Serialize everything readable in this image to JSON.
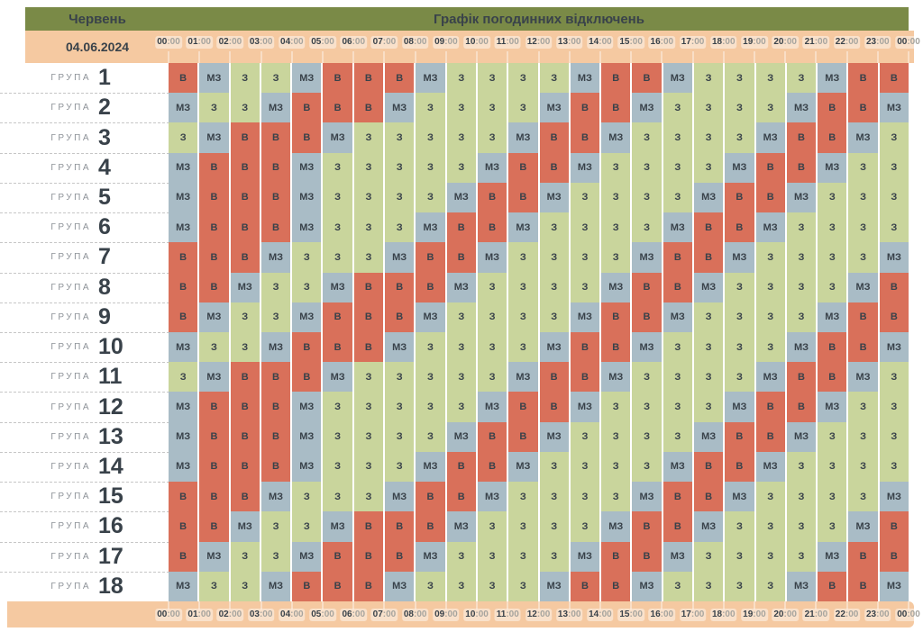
{
  "header": {
    "month": "Червень",
    "title": "Графік погодинних відключень",
    "date": "04.06.2024"
  },
  "group_label": "ГРУПА",
  "colors": {
    "header_bg": "#7a8a47",
    "time_bar_bg": "#f5c9a1",
    "dark_text": "#39424a",
    "muted_text": "#8d9298",
    "time_minutes_text": "#a6a49e"
  },
  "cell_states": {
    "В": {
      "color": "#d9705a"
    },
    "МЗ": {
      "color": "#a9bcc6"
    },
    "З": {
      "color": "#c9d59c"
    }
  },
  "chart_data": {
    "type": "heatmap",
    "title": "Графік погодинних відключень",
    "subtitle": "Червень 04.06.2024",
    "x_labels": [
      "00:00",
      "01:00",
      "02:00",
      "03:00",
      "04:00",
      "05:00",
      "06:00",
      "07:00",
      "08:00",
      "09:00",
      "10:00",
      "11:00",
      "12:00",
      "13:00",
      "14:00",
      "15:00",
      "16:00",
      "17:00",
      "18:00",
      "19:00",
      "20:00",
      "21:00",
      "22:00",
      "23:00",
      "00:00"
    ],
    "y_labels": [
      "1",
      "2",
      "3",
      "4",
      "5",
      "6",
      "7",
      "8",
      "9",
      "10",
      "11",
      "12",
      "13",
      "14",
      "15",
      "16",
      "17",
      "18"
    ],
    "legend": {
      "В": "#d9705a",
      "МЗ": "#a9bcc6",
      "З": "#c9d59c"
    },
    "values": [
      [
        "В",
        "МЗ",
        "З",
        "З",
        "МЗ",
        "В",
        "В",
        "В",
        "МЗ",
        "З",
        "З",
        "З",
        "З",
        "МЗ",
        "В",
        "В",
        "МЗ",
        "З",
        "З",
        "З",
        "З",
        "МЗ",
        "В",
        "В"
      ],
      [
        "МЗ",
        "З",
        "З",
        "МЗ",
        "В",
        "В",
        "В",
        "МЗ",
        "З",
        "З",
        "З",
        "З",
        "МЗ",
        "В",
        "В",
        "МЗ",
        "З",
        "З",
        "З",
        "З",
        "МЗ",
        "В",
        "В",
        "МЗ"
      ],
      [
        "З",
        "МЗ",
        "В",
        "В",
        "В",
        "МЗ",
        "З",
        "З",
        "З",
        "З",
        "З",
        "МЗ",
        "В",
        "В",
        "МЗ",
        "З",
        "З",
        "З",
        "З",
        "МЗ",
        "В",
        "В",
        "МЗ",
        "З"
      ],
      [
        "МЗ",
        "В",
        "В",
        "В",
        "МЗ",
        "З",
        "З",
        "З",
        "З",
        "З",
        "МЗ",
        "В",
        "В",
        "МЗ",
        "З",
        "З",
        "З",
        "З",
        "МЗ",
        "В",
        "В",
        "МЗ",
        "З",
        "З"
      ],
      [
        "МЗ",
        "В",
        "В",
        "В",
        "МЗ",
        "З",
        "З",
        "З",
        "З",
        "МЗ",
        "В",
        "В",
        "МЗ",
        "З",
        "З",
        "З",
        "З",
        "МЗ",
        "В",
        "В",
        "МЗ",
        "З",
        "З",
        "З"
      ],
      [
        "МЗ",
        "В",
        "В",
        "В",
        "МЗ",
        "З",
        "З",
        "З",
        "МЗ",
        "В",
        "В",
        "МЗ",
        "З",
        "З",
        "З",
        "З",
        "МЗ",
        "В",
        "В",
        "МЗ",
        "З",
        "З",
        "З",
        "З"
      ],
      [
        "В",
        "В",
        "В",
        "МЗ",
        "З",
        "З",
        "З",
        "МЗ",
        "В",
        "В",
        "МЗ",
        "З",
        "З",
        "З",
        "З",
        "МЗ",
        "В",
        "В",
        "МЗ",
        "З",
        "З",
        "З",
        "З",
        "МЗ"
      ],
      [
        "В",
        "В",
        "МЗ",
        "З",
        "З",
        "МЗ",
        "В",
        "В",
        "В",
        "МЗ",
        "З",
        "З",
        "З",
        "З",
        "МЗ",
        "В",
        "В",
        "МЗ",
        "З",
        "З",
        "З",
        "З",
        "МЗ",
        "В"
      ],
      [
        "В",
        "МЗ",
        "З",
        "З",
        "МЗ",
        "В",
        "В",
        "В",
        "МЗ",
        "З",
        "З",
        "З",
        "З",
        "МЗ",
        "В",
        "В",
        "МЗ",
        "З",
        "З",
        "З",
        "З",
        "МЗ",
        "В",
        "В"
      ],
      [
        "МЗ",
        "З",
        "З",
        "МЗ",
        "В",
        "В",
        "В",
        "МЗ",
        "З",
        "З",
        "З",
        "З",
        "МЗ",
        "В",
        "В",
        "МЗ",
        "З",
        "З",
        "З",
        "З",
        "МЗ",
        "В",
        "В",
        "МЗ"
      ],
      [
        "З",
        "МЗ",
        "В",
        "В",
        "В",
        "МЗ",
        "З",
        "З",
        "З",
        "З",
        "З",
        "МЗ",
        "В",
        "В",
        "МЗ",
        "З",
        "З",
        "З",
        "З",
        "МЗ",
        "В",
        "В",
        "МЗ",
        "З"
      ],
      [
        "МЗ",
        "В",
        "В",
        "В",
        "МЗ",
        "З",
        "З",
        "З",
        "З",
        "З",
        "МЗ",
        "В",
        "В",
        "МЗ",
        "З",
        "З",
        "З",
        "З",
        "МЗ",
        "В",
        "В",
        "МЗ",
        "З",
        "З"
      ],
      [
        "МЗ",
        "В",
        "В",
        "В",
        "МЗ",
        "З",
        "З",
        "З",
        "З",
        "МЗ",
        "В",
        "В",
        "МЗ",
        "З",
        "З",
        "З",
        "З",
        "МЗ",
        "В",
        "В",
        "МЗ",
        "З",
        "З",
        "З"
      ],
      [
        "МЗ",
        "В",
        "В",
        "В",
        "МЗ",
        "З",
        "З",
        "З",
        "МЗ",
        "В",
        "В",
        "МЗ",
        "З",
        "З",
        "З",
        "З",
        "МЗ",
        "В",
        "В",
        "МЗ",
        "З",
        "З",
        "З",
        "З"
      ],
      [
        "В",
        "В",
        "В",
        "МЗ",
        "З",
        "З",
        "З",
        "МЗ",
        "В",
        "В",
        "МЗ",
        "З",
        "З",
        "З",
        "З",
        "МЗ",
        "В",
        "В",
        "МЗ",
        "З",
        "З",
        "З",
        "З",
        "МЗ"
      ],
      [
        "В",
        "В",
        "МЗ",
        "З",
        "З",
        "МЗ",
        "В",
        "В",
        "В",
        "МЗ",
        "З",
        "З",
        "З",
        "З",
        "МЗ",
        "В",
        "В",
        "МЗ",
        "З",
        "З",
        "З",
        "З",
        "МЗ",
        "В"
      ],
      [
        "В",
        "МЗ",
        "З",
        "З",
        "МЗ",
        "В",
        "В",
        "В",
        "МЗ",
        "З",
        "З",
        "З",
        "З",
        "МЗ",
        "В",
        "В",
        "МЗ",
        "З",
        "З",
        "З",
        "З",
        "МЗ",
        "В",
        "В"
      ],
      [
        "МЗ",
        "З",
        "З",
        "МЗ",
        "В",
        "В",
        "В",
        "МЗ",
        "З",
        "З",
        "З",
        "З",
        "МЗ",
        "В",
        "В",
        "МЗ",
        "З",
        "З",
        "З",
        "З",
        "МЗ",
        "В",
        "В",
        "МЗ"
      ]
    ]
  }
}
